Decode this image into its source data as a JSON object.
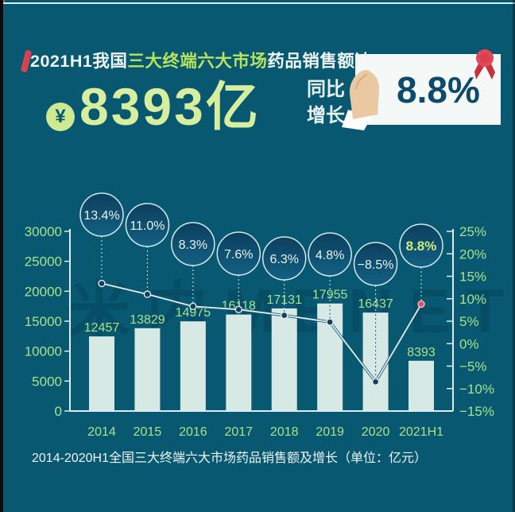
{
  "header": {
    "title_prefix": "2021H1我国",
    "title_highlight": "三大终端六大市场",
    "title_suffix": "药品销售额达",
    "yuan_symbol": "¥",
    "total_value": "8393亿",
    "yoy_label_line1": "同比",
    "yoy_label_line2": "增长",
    "yoy_value": "8.8%"
  },
  "caption": "2014-2020H1全国三大终端六大市场药品销售额及增长（单位：亿元）",
  "watermark": "米内MENET",
  "colors": {
    "background": "#075870",
    "accent_green": "#b8e35e",
    "big_number_green": "#d6ee9e",
    "axis_green": "#a9e28a",
    "bar_fill": "#d6e9e5",
    "line_light": "#d9f1f4",
    "line_dark": "#1d4f6b",
    "bubble_fill_top": "#0c3f5e",
    "bubble_fill_bottom": "#136083",
    "bubble_stroke": "#cfe9ee",
    "bubble_text": "#e8f3ec",
    "bubble_text_highlight": "#cfec7a",
    "marker_fill": "#17405f",
    "marker_last_fill": "#e0525e",
    "card_bg": "#f4f8f7",
    "card_text": "#0d4a6b",
    "ribbon_red": "#e3495a",
    "white_text": "#eef6f8"
  },
  "chart_data": {
    "type": "bar+line",
    "title": "2014-2020H1全国三大终端六大市场药品销售额及增长（单位：亿元）",
    "categories": [
      "2014",
      "2015",
      "2016",
      "2017",
      "2018",
      "2019",
      "2020",
      "2021H1"
    ],
    "series": [
      {
        "name": "药品销售额(亿元)",
        "type": "bar",
        "values": [
          12457,
          13829,
          14975,
          16118,
          17131,
          17955,
          16437,
          8393
        ],
        "labels": [
          "12457",
          "13829",
          "14975",
          "16118",
          "17131",
          "17955",
          "16437",
          "8393"
        ]
      },
      {
        "name": "同比增长(%)",
        "type": "line",
        "values": [
          13.4,
          11.0,
          8.3,
          7.6,
          6.3,
          4.8,
          -8.5,
          8.8
        ],
        "labels": [
          "13.4%",
          "11.0%",
          "8.3%",
          "7.6%",
          "6.3%",
          "4.8%",
          "−8.5%",
          "8.8%"
        ]
      }
    ],
    "left_axis": {
      "min": 0,
      "max": 30000,
      "step": 5000,
      "ticks": [
        "0",
        "5000",
        "10000",
        "15000",
        "20000",
        "25000",
        "30000"
      ]
    },
    "right_axis": {
      "min": -15,
      "max": 25,
      "step": 5,
      "ticks": [
        "−15%",
        "−10%",
        "−5%",
        "0%",
        "5%",
        "10%",
        "15%",
        "20%",
        "25%"
      ]
    },
    "grid": false,
    "legend": "none"
  }
}
